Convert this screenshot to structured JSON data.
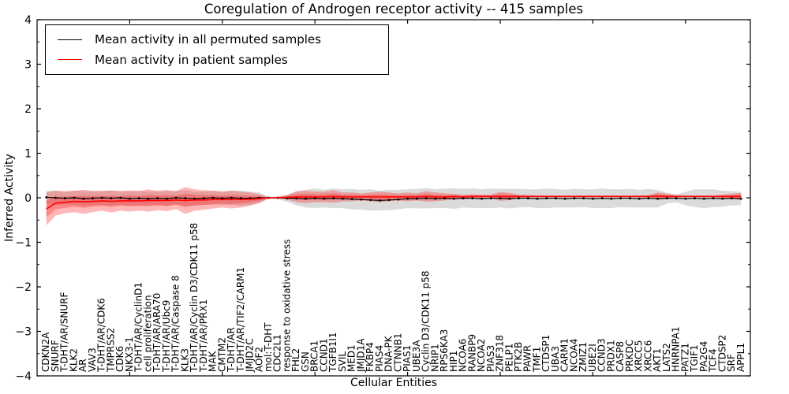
{
  "title": "Coregulation of Androgen receptor activity -- 415 samples",
  "legend": {
    "items": [
      {
        "label": "Mean activity in all permuted samples",
        "color": "#000000"
      },
      {
        "label": "Mean activity in patient samples",
        "color": "#ff0000"
      }
    ],
    "position": "upper left"
  },
  "chart_data": {
    "type": "line",
    "title": "Coregulation of Androgen receptor activity -- 415 samples",
    "xlabel": "Cellular Entities",
    "ylabel": "Inferred Activity",
    "ylim": [
      -4,
      4
    ],
    "yticks": [
      4,
      3,
      2,
      1,
      0,
      -1,
      -2,
      -3,
      -4
    ],
    "ytick_minor_step": 0.5,
    "xticks_units": [
      10,
      20,
      30,
      40,
      50,
      60,
      70
    ],
    "grid": false,
    "legend_position": "upper left",
    "categories": [
      "CDKN2A",
      "SNURF",
      "T-DHT/AR/SNURF",
      "KLK2",
      "AR",
      "VAV3",
      "T-DHT/AR/CDK6",
      "TMPRSS2",
      "CDK6",
      "NKX3-1",
      "T-DHT/AR/CyclinD1",
      "cell proliferation",
      "T-DHT/AR/ARA70",
      "T-DHT/AR/Ubc9",
      "T-DHT/AR/Caspase 8",
      "KLK3",
      "T-DHT/AR/Cyclin D3/CDK11 p58",
      "T-DHT/AR/PRX1",
      "MAK",
      "CMTM2",
      "T-DHT/AR",
      "T-DHT/AR/TIF2/CARM1",
      "JMJD2C",
      "AOF2",
      "mol:T-DHT",
      "CDC2L1",
      "response to oxidative stress",
      "FHL2",
      "GSN",
      "BRCA1",
      "CCND1",
      "TGFB1I1",
      "SVIL",
      "MED1",
      "JMJD1A",
      "FKBP4",
      "PIAS4",
      "DNA-PK",
      "CTNNB1",
      "PIAS1",
      "UBE3A",
      "Cyclin D3/CDK11 p58",
      "NRIP1",
      "RPS6KA3",
      "HIP1",
      "NCOA6",
      "RANBP9",
      "NCOA2",
      "PIAS3",
      "ZNF318",
      "PELP1",
      "PTK2B",
      "PAWR",
      "TMF1",
      "CTDSP1",
      "UBA3",
      "CARM1",
      "NCOA4",
      "ZMIZ1",
      "UBE2I",
      "CCND3",
      "PRDX1",
      "CASP8",
      "PRKDC",
      "XRCC5",
      "XRCC6",
      "AKT1",
      "LATS2",
      "HNRNPA1",
      "PATZ1",
      "TGIF1",
      "PA2G4",
      "TCF4",
      "CTDSP2",
      "SRF",
      "APPL1"
    ],
    "series": [
      {
        "name": "Mean activity in all permuted samples",
        "color": "#000000",
        "band_color": "rgba(0,0,0,0.14)",
        "markers": true,
        "values": [
          0.01,
          0.0,
          -0.01,
          0.0,
          -0.02,
          -0.01,
          0.0,
          -0.01,
          0.0,
          -0.02,
          -0.01,
          -0.02,
          -0.01,
          -0.02,
          0.0,
          -0.01,
          -0.02,
          -0.01,
          0.0,
          -0.01,
          0.0,
          -0.01,
          -0.01,
          0.0,
          0.0,
          0.0,
          -0.01,
          -0.01,
          -0.02,
          -0.01,
          -0.02,
          -0.01,
          -0.02,
          -0.03,
          -0.04,
          -0.05,
          -0.06,
          -0.05,
          -0.04,
          -0.02,
          -0.02,
          -0.01,
          -0.02,
          -0.01,
          -0.02,
          -0.01,
          -0.01,
          -0.02,
          -0.01,
          -0.01,
          -0.02,
          -0.01,
          -0.01,
          -0.02,
          -0.01,
          -0.01,
          -0.02,
          -0.01,
          -0.01,
          -0.02,
          -0.01,
          -0.02,
          -0.01,
          -0.01,
          -0.02,
          -0.01,
          -0.02,
          -0.01,
          -0.01,
          -0.02,
          -0.01,
          -0.02,
          -0.01,
          -0.02,
          -0.01,
          -0.02
        ],
        "band": [
          0.15,
          0.16,
          0.14,
          0.16,
          0.17,
          0.15,
          0.16,
          0.17,
          0.15,
          0.16,
          0.17,
          0.16,
          0.15,
          0.17,
          0.15,
          0.18,
          0.16,
          0.15,
          0.16,
          0.15,
          0.16,
          0.17,
          0.15,
          0.12,
          0.02,
          0.03,
          0.08,
          0.16,
          0.2,
          0.22,
          0.2,
          0.22,
          0.21,
          0.23,
          0.22,
          0.24,
          0.22,
          0.23,
          0.22,
          0.21,
          0.22,
          0.23,
          0.21,
          0.22,
          0.23,
          0.21,
          0.22,
          0.21,
          0.22,
          0.21,
          0.22,
          0.21,
          0.2,
          0.21,
          0.22,
          0.21,
          0.2,
          0.21,
          0.2,
          0.21,
          0.22,
          0.21,
          0.2,
          0.21,
          0.2,
          0.21,
          0.2,
          0.12,
          0.09,
          0.15,
          0.2,
          0.21,
          0.2,
          0.18,
          0.16,
          0.15
        ]
      },
      {
        "name": "Mean activity in patient samples",
        "color": "#ff0000",
        "band_color": "rgba(255,30,30,0.32)",
        "band_inner": true,
        "markers": false,
        "values": [
          -0.25,
          -0.12,
          -0.1,
          -0.08,
          -0.09,
          -0.08,
          -0.07,
          -0.08,
          -0.07,
          -0.07,
          -0.07,
          -0.06,
          -0.06,
          -0.06,
          -0.05,
          -0.06,
          -0.05,
          -0.05,
          -0.04,
          -0.04,
          -0.04,
          -0.04,
          -0.03,
          -0.02,
          0.0,
          0.0,
          0.01,
          0.02,
          0.02,
          0.02,
          0.02,
          0.03,
          0.02,
          0.02,
          0.02,
          0.02,
          0.02,
          0.02,
          0.02,
          0.02,
          0.02,
          0.03,
          0.02,
          0.02,
          0.03,
          0.02,
          0.03,
          0.03,
          0.03,
          0.03,
          0.03,
          0.03,
          0.03,
          0.03,
          0.03,
          0.03,
          0.03,
          0.03,
          0.03,
          0.03,
          0.03,
          0.03,
          0.03,
          0.03,
          0.03,
          0.03,
          0.04,
          0.03,
          0.03,
          0.03,
          0.03,
          0.03,
          0.03,
          0.03,
          0.03,
          0.03
        ],
        "band": [
          0.37,
          0.28,
          0.25,
          0.24,
          0.27,
          0.24,
          0.22,
          0.25,
          0.22,
          0.24,
          0.22,
          0.25,
          0.22,
          0.24,
          0.2,
          0.3,
          0.24,
          0.22,
          0.2,
          0.18,
          0.2,
          0.18,
          0.15,
          0.1,
          0.01,
          0.02,
          0.05,
          0.12,
          0.14,
          0.12,
          0.12,
          0.14,
          0.1,
          0.1,
          0.08,
          0.1,
          0.12,
          0.1,
          0.08,
          0.1,
          0.08,
          0.12,
          0.1,
          0.08,
          0.06,
          0.05,
          0.05,
          0.04,
          0.04,
          0.1,
          0.08,
          0.04,
          0.03,
          0.02,
          0.02,
          0.02,
          0.02,
          0.02,
          0.02,
          0.02,
          0.02,
          0.02,
          0.02,
          0.02,
          0.02,
          0.03,
          0.08,
          0.06,
          0.03,
          0.02,
          0.02,
          0.02,
          0.02,
          0.04,
          0.06,
          0.08
        ]
      }
    ]
  }
}
